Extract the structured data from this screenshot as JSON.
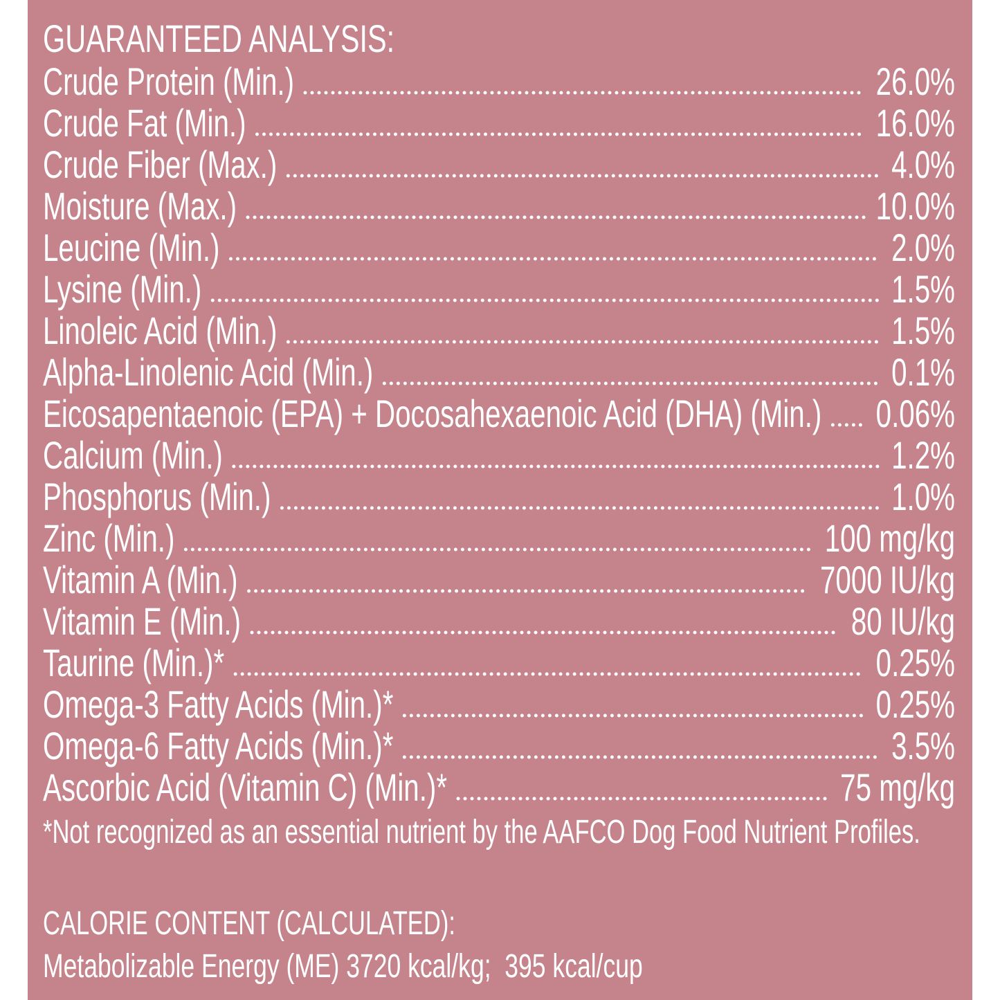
{
  "header": {
    "title": "GUARANTEED ANALYSIS:"
  },
  "rows": [
    {
      "label": "Crude Protein (Min.)",
      "value": "26.0%"
    },
    {
      "label": "Crude Fat (Min.)",
      "value": "16.0%"
    },
    {
      "label": "Crude Fiber (Max.)",
      "value": "4.0%"
    },
    {
      "label": "Moisture (Max.)",
      "value": "10.0%"
    },
    {
      "label": "Leucine (Min.)",
      "value": "2.0%"
    },
    {
      "label": "Lysine (Min.)",
      "value": "1.5%"
    },
    {
      "label": "Linoleic Acid (Min.)",
      "value": "1.5%"
    },
    {
      "label": "Alpha-Linolenic Acid (Min.)",
      "value": "0.1%"
    },
    {
      "label": "Eicosapentaenoic (EPA) + Docosahexaenoic Acid (DHA) (Min.)",
      "value": "0.06%"
    },
    {
      "label": "Calcium (Min.)",
      "value": "1.2%"
    },
    {
      "label": "Phosphorus (Min.)",
      "value": "1.0%"
    },
    {
      "label": "Zinc (Min.)",
      "value": "100 mg/kg"
    },
    {
      "label": "Vitamin A (Min.)",
      "value": "7000 IU/kg"
    },
    {
      "label": "Vitamin E (Min.)",
      "value": "80 IU/kg"
    },
    {
      "label": "Taurine (Min.)*",
      "value": "0.25%"
    },
    {
      "label": "Omega-3 Fatty Acids (Min.)*",
      "value": "0.25%"
    },
    {
      "label": "Omega-6 Fatty Acids (Min.)*",
      "value": "3.5%"
    },
    {
      "label": "Ascorbic Acid (Vitamin C) (Min.)*",
      "value": "75 mg/kg"
    }
  ],
  "footnote": "*Not recognized as an essential nutrient by the AAFCO Dog Food Nutrient Profiles.",
  "calorie": {
    "title": "CALORIE CONTENT (CALCULATED):",
    "text": "Metabolizable Energy (ME) 3720 kcal/kg;  395 kcal/cup"
  }
}
